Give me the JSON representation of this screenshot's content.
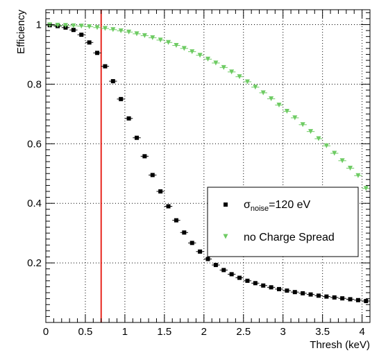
{
  "chart_data": {
    "type": "scatter",
    "title": "",
    "xlabel": "Thresh (keV)",
    "ylabel": "Efficiency",
    "xlim": [
      0,
      4.1
    ],
    "ylim": [
      0,
      1.05
    ],
    "x_ticks": [
      0,
      0.5,
      1,
      1.5,
      2,
      2.5,
      3,
      3.5,
      4
    ],
    "x_tick_labels": [
      "0",
      "0.5",
      "1",
      "1.5",
      "2",
      "2.5",
      "3",
      "3.5",
      "4"
    ],
    "y_ticks": [
      0.2,
      0.4,
      0.6,
      0.8,
      1
    ],
    "y_tick_labels": [
      "0.2",
      "0.4",
      "0.6",
      "0.8",
      "1"
    ],
    "grid": true,
    "legend_position": "center-right",
    "vertical_line": {
      "x": 0.7,
      "color": "#e8261e"
    },
    "series": [
      {
        "name": "σnoise=120 eV",
        "name_parts": {
          "symbol": "σ",
          "subscript": "noise",
          "rest": "=120 eV"
        },
        "color": "#000000",
        "marker": "square",
        "x": [
          0.05,
          0.15,
          0.25,
          0.35,
          0.45,
          0.55,
          0.65,
          0.75,
          0.85,
          0.95,
          1.05,
          1.15,
          1.25,
          1.35,
          1.45,
          1.55,
          1.65,
          1.75,
          1.85,
          1.95,
          2.05,
          2.15,
          2.25,
          2.35,
          2.45,
          2.55,
          2.65,
          2.75,
          2.85,
          2.95,
          3.05,
          3.15,
          3.25,
          3.35,
          3.45,
          3.55,
          3.65,
          3.75,
          3.85,
          3.95,
          4.05
        ],
        "y": [
          0.998,
          0.995,
          0.99,
          0.982,
          0.966,
          0.94,
          0.905,
          0.86,
          0.81,
          0.75,
          0.685,
          0.62,
          0.558,
          0.495,
          0.44,
          0.39,
          0.343,
          0.302,
          0.267,
          0.238,
          0.213,
          0.193,
          0.176,
          0.162,
          0.15,
          0.14,
          0.132,
          0.124,
          0.118,
          0.112,
          0.107,
          0.102,
          0.098,
          0.094,
          0.09,
          0.087,
          0.084,
          0.081,
          0.078,
          0.075,
          0.072
        ]
      },
      {
        "name": "no Charge Spread",
        "color": "#6ecb63",
        "marker": "triangle-down",
        "x": [
          0.05,
          0.15,
          0.25,
          0.35,
          0.45,
          0.55,
          0.65,
          0.75,
          0.85,
          0.95,
          1.05,
          1.15,
          1.25,
          1.35,
          1.45,
          1.55,
          1.65,
          1.75,
          1.85,
          1.95,
          2.05,
          2.15,
          2.25,
          2.35,
          2.45,
          2.55,
          2.65,
          2.75,
          2.85,
          2.95,
          3.05,
          3.15,
          3.25,
          3.35,
          3.45,
          3.55,
          3.65,
          3.75,
          3.85,
          3.95,
          4.05
        ],
        "y": [
          0.999,
          0.998,
          0.997,
          0.996,
          0.995,
          0.993,
          0.99,
          0.987,
          0.983,
          0.979,
          0.975,
          0.969,
          0.963,
          0.956,
          0.948,
          0.94,
          0.93,
          0.92,
          0.909,
          0.897,
          0.884,
          0.871,
          0.856,
          0.841,
          0.825,
          0.808,
          0.79,
          0.771,
          0.751,
          0.73,
          0.709,
          0.687,
          0.664,
          0.641,
          0.617,
          0.593,
          0.568,
          0.543,
          0.518,
          0.493,
          0.45
        ]
      }
    ]
  }
}
